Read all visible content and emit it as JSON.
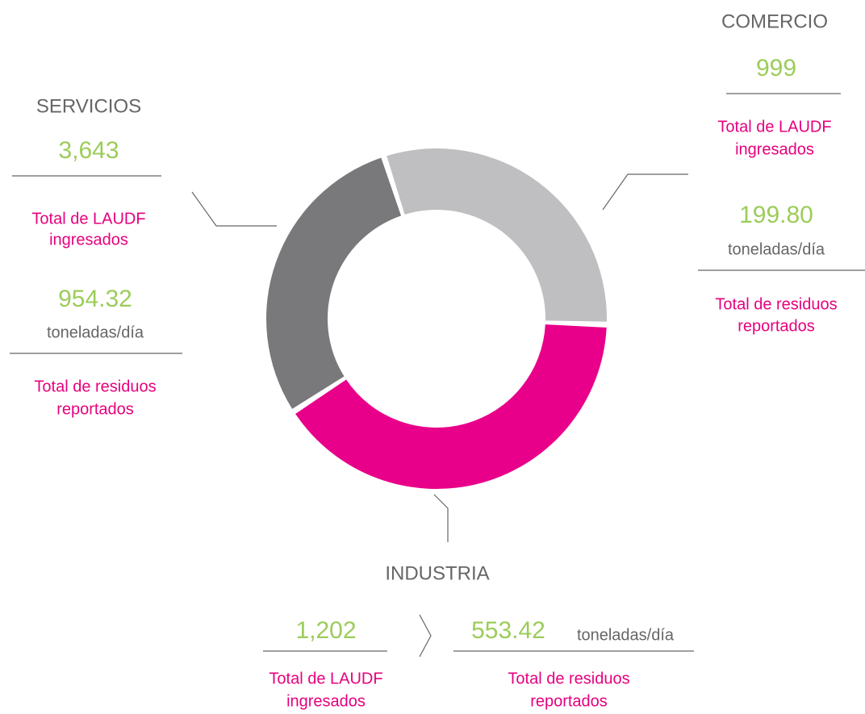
{
  "sectors": [
    {
      "name": "SERVICIOS",
      "laudf": "3,643",
      "laudf_caption": [
        "Total de LAUDF",
        "ingresados"
      ],
      "toneladas": "954.32",
      "unit": "toneladas/día",
      "residuos_caption": [
        "Total de residuos",
        "reportados"
      ]
    },
    {
      "name": "COMERCIO",
      "laudf": "999",
      "laudf_caption": [
        "Total de LAUDF",
        "ingresados"
      ],
      "toneladas": "199.80",
      "unit": "toneladas/día",
      "residuos_caption": [
        "Total de residuos",
        "reportados"
      ]
    },
    {
      "name": "INDUSTRIA",
      "laudf": "1,202",
      "laudf_caption": [
        "Total de LAUDF",
        "ingresados"
      ],
      "toneladas": "553.42",
      "unit": "toneladas/día",
      "residuos_caption": [
        "Total de residuos",
        "reportados"
      ]
    }
  ]
}
